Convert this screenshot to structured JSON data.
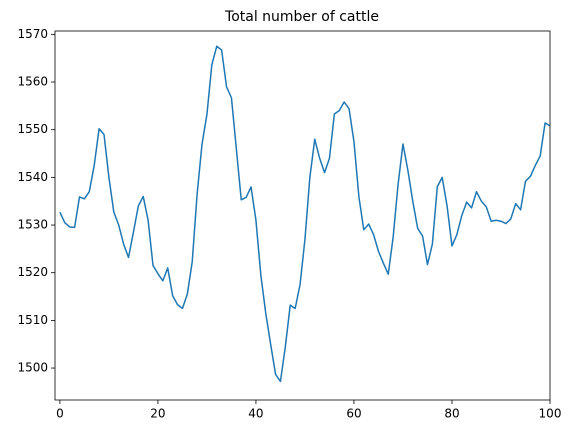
{
  "chart_data": {
    "type": "line",
    "title": "Total number of cattle",
    "x": [
      0,
      1,
      2,
      3,
      4,
      5,
      6,
      7,
      8,
      9,
      10,
      11,
      12,
      13,
      14,
      15,
      16,
      17,
      18,
      19,
      20,
      21,
      22,
      23,
      24,
      25,
      26,
      27,
      28,
      29,
      30,
      31,
      32,
      33,
      34,
      35,
      36,
      37,
      38,
      39,
      40,
      41,
      42,
      43,
      44,
      45,
      46,
      47,
      48,
      49,
      50,
      51,
      52,
      53,
      54,
      55,
      56,
      57,
      58,
      59,
      60,
      61,
      62,
      63,
      64,
      65,
      66,
      67,
      68,
      69,
      70,
      71,
      72,
      73,
      74,
      75,
      76,
      77,
      78,
      79,
      80,
      81,
      82,
      83,
      84,
      85,
      86,
      87,
      88,
      89,
      90,
      91,
      92,
      93,
      94,
      95,
      96,
      97,
      98,
      99,
      100
    ],
    "series": [
      {
        "color": "#1f77b4",
        "values": [
          1532.7,
          1530.5,
          1529.6,
          1529.5,
          1535.9,
          1535.5,
          1537,
          1542.5,
          1550.2,
          1549,
          1540,
          1532.7,
          1530,
          1526,
          1523.2,
          1528.5,
          1534,
          1536,
          1531,
          1521.5,
          1519.8,
          1518.3,
          1521,
          1515.2,
          1513.3,
          1512.5,
          1515.5,
          1522.3,
          1536.5,
          1547,
          1553.2,
          1563.6,
          1567.5,
          1566.7,
          1559,
          1556.7,
          1546,
          1535.3,
          1535.8,
          1538,
          1531,
          1519.5,
          1511.5,
          1505,
          1498.7,
          1497.2,
          1504.5,
          1513.2,
          1512.5,
          1517.5,
          1527,
          1540,
          1548,
          1544,
          1541,
          1544,
          1553.3,
          1554,
          1555.8,
          1554.4,
          1547.5,
          1536,
          1529,
          1530.2,
          1528,
          1524.5,
          1522,
          1519.7,
          1527.5,
          1538.5,
          1547,
          1541.5,
          1535,
          1529.3,
          1527.7,
          1521.7,
          1526,
          1538,
          1540,
          1534,
          1525.6,
          1528,
          1532,
          1534.8,
          1533.6,
          1537,
          1535,
          1533.8,
          1530.8,
          1531,
          1530.8,
          1530.3,
          1531.3,
          1534.5,
          1533.2,
          1539.2,
          1540.2,
          1542.5,
          1544.5,
          1551.4,
          1550.8
        ]
      }
    ],
    "xlim": [
      -1,
      100
    ],
    "ylim": [
      1493.3,
      1570.7
    ],
    "xticks": [
      0,
      20,
      40,
      60,
      80,
      100
    ],
    "yticks": [
      1500,
      1510,
      1520,
      1530,
      1540,
      1550,
      1560,
      1570
    ]
  }
}
